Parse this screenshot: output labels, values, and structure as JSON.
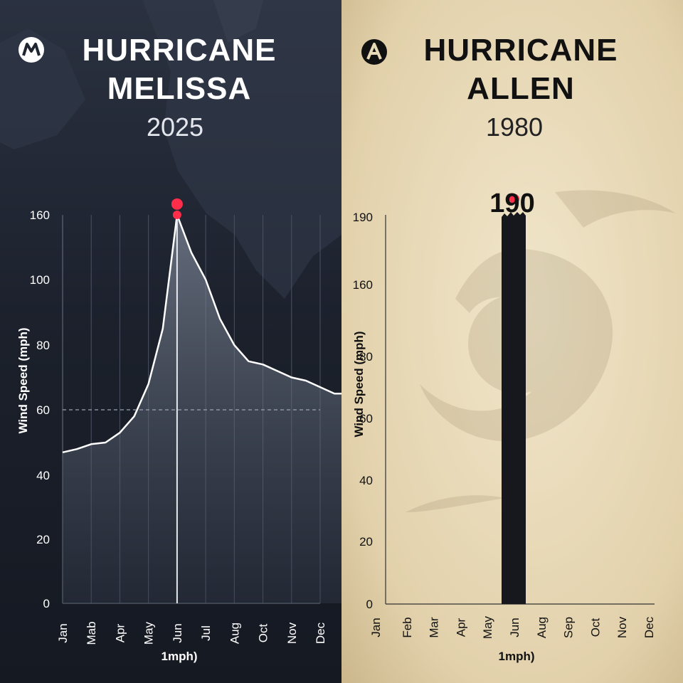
{
  "left": {
    "title_line1": "HURRICANE",
    "title_line2": "MELISSA",
    "year": "2025",
    "colors": {
      "bg": "#1e2430",
      "text": "#ffffff",
      "accent": "#ff2d4a"
    }
  },
  "right": {
    "title_line1": "HURRICANE",
    "title_line2": "ALLEN",
    "year": "1980",
    "colors": {
      "bg": "#e7d8b6",
      "text": "#111111",
      "accent": "#ff2d4a"
    }
  },
  "chart_data": [
    {
      "type": "area",
      "ylabel": "Wind Speed (mph)",
      "xlabel": "1mph)",
      "y_tick_labels": [
        "0",
        "20",
        "40",
        "60",
        "80",
        "100",
        "160"
      ],
      "categories": [
        "Jan",
        "Mab",
        "Apr",
        "May",
        "Jun",
        "Jul",
        "Aug",
        "Oct",
        "Nov",
        "Dec"
      ],
      "x": [
        0,
        0.5,
        1,
        1.5,
        2,
        2.5,
        3,
        3.5,
        4,
        4.5,
        5,
        5.5,
        6,
        6.5,
        7,
        7.5,
        8,
        8.5,
        9,
        9.5,
        10
      ],
      "values": [
        47,
        48,
        49.5,
        50,
        53,
        58,
        68,
        85,
        160,
        125,
        100,
        88,
        80,
        75,
        74,
        72,
        70,
        69,
        67,
        65,
        65
      ],
      "peak_markers": [
        170,
        160
      ],
      "reference_line": 60,
      "grid": true
    },
    {
      "type": "bar",
      "ylabel": "Wind Speed (mph)",
      "xlabel": "1mph)",
      "y_tick_labels": [
        "0",
        "20",
        "40",
        "60",
        "80",
        "160",
        "190"
      ],
      "categories": [
        "Jan",
        "Feb",
        "Mar",
        "Apr",
        "May",
        "Jun",
        "Aug",
        "Sep",
        "Oct",
        "Nov",
        "Dec"
      ],
      "values": [
        0,
        0,
        0,
        0,
        0,
        190,
        0,
        0,
        0,
        0,
        0
      ],
      "peak_label": "190",
      "peak_marker": 198,
      "grid": false
    }
  ]
}
